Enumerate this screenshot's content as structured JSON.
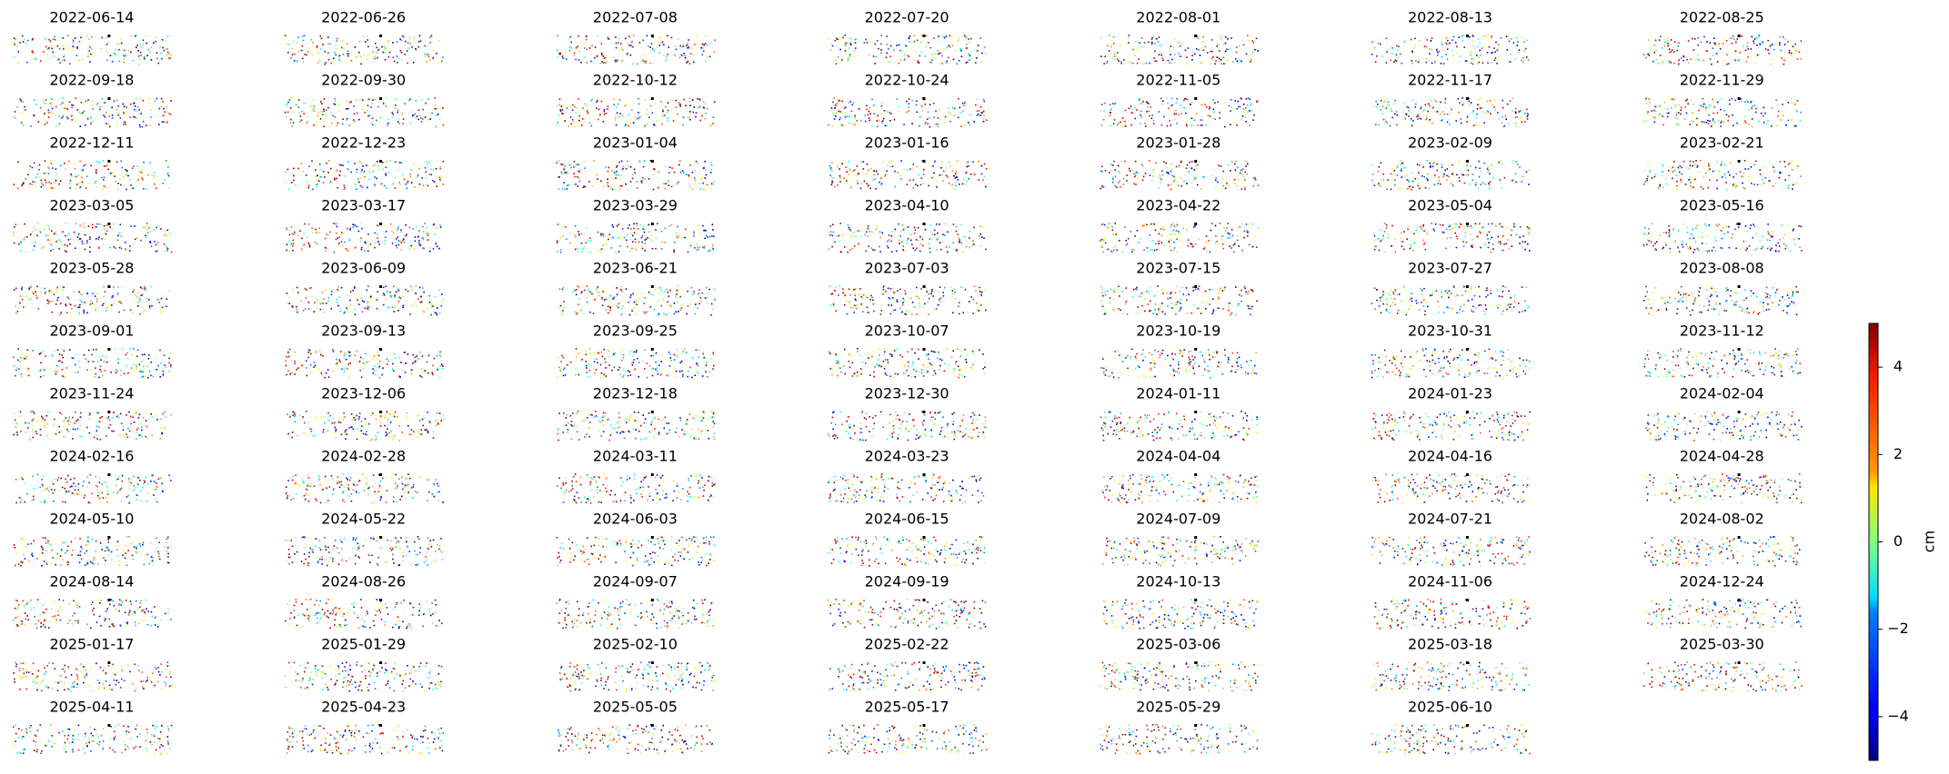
{
  "chart_data": {
    "type": "image-grid",
    "columns": 7,
    "panels": [
      "2022-06-14",
      "2022-06-26",
      "2022-07-08",
      "2022-07-20",
      "2022-08-01",
      "2022-08-13",
      "2022-08-25",
      "2022-09-18",
      "2022-09-30",
      "2022-10-12",
      "2022-10-24",
      "2022-11-05",
      "2022-11-17",
      "2022-11-29",
      "2022-12-11",
      "2022-12-23",
      "2023-01-04",
      "2023-01-16",
      "2023-01-28",
      "2023-02-09",
      "2023-02-21",
      "2023-03-05",
      "2023-03-17",
      "2023-03-29",
      "2023-04-10",
      "2023-04-22",
      "2023-05-04",
      "2023-05-16",
      "2023-05-28",
      "2023-06-09",
      "2023-06-21",
      "2023-07-03",
      "2023-07-15",
      "2023-07-27",
      "2023-08-08",
      "2023-09-01",
      "2023-09-13",
      "2023-09-25",
      "2023-10-07",
      "2023-10-19",
      "2023-10-31",
      "2023-11-12",
      "2023-11-24",
      "2023-12-06",
      "2023-12-18",
      "2023-12-30",
      "2024-01-11",
      "2024-01-23",
      "2024-02-04",
      "2024-02-16",
      "2024-02-28",
      "2024-03-11",
      "2024-03-23",
      "2024-04-04",
      "2024-04-16",
      "2024-04-28",
      "2024-05-10",
      "2024-05-22",
      "2024-06-03",
      "2024-06-15",
      "2024-07-09",
      "2024-07-21",
      "2024-08-02",
      "2024-08-14",
      "2024-08-26",
      "2024-09-07",
      "2024-09-19",
      "2024-10-13",
      "2024-11-06",
      "2024-12-24",
      "2025-01-17",
      "2025-01-29",
      "2025-02-10",
      "2025-02-22",
      "2025-03-06",
      "2025-03-18",
      "2025-03-30",
      "2025-04-11",
      "2025-04-23",
      "2025-05-05",
      "2025-05-17",
      "2025-05-29",
      "2025-06-10"
    ],
    "colorbar": {
      "label": "cm",
      "colormap": "jet",
      "lim": [
        -5,
        5
      ],
      "ticks": [
        {
          "value": -4,
          "label": "−4"
        },
        {
          "value": -2,
          "label": "−2"
        },
        0,
        2,
        4
      ]
    }
  }
}
